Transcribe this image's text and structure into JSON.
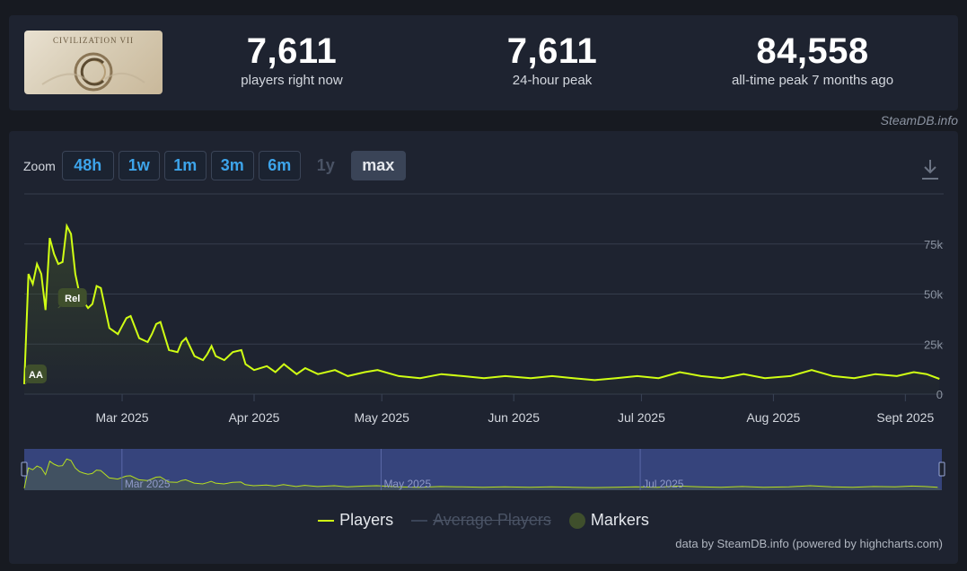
{
  "game": {
    "title": "CIVILIZATION VII"
  },
  "stats": [
    {
      "value": "7,611",
      "label": "players right now"
    },
    {
      "value": "7,611",
      "label": "24-hour peak"
    },
    {
      "value": "84,558",
      "label": "all-time peak 7 months ago"
    }
  ],
  "credit_top": "SteamDB.info",
  "zoom": {
    "label": "Zoom",
    "buttons": [
      {
        "label": "48h",
        "state": "enabled"
      },
      {
        "label": "1w",
        "state": "enabled"
      },
      {
        "label": "1m",
        "state": "enabled"
      },
      {
        "label": "3m",
        "state": "enabled"
      },
      {
        "label": "6m",
        "state": "enabled"
      },
      {
        "label": "1y",
        "state": "disabled"
      },
      {
        "label": "max",
        "state": "active"
      }
    ]
  },
  "legend": {
    "players": "Players",
    "average": "Average Players",
    "markers": "Markers"
  },
  "credit_bottom": "data by SteamDB.info (powered by highcharts.com)",
  "colors": {
    "players": "#d0ff14",
    "marker": "#3f4f2c",
    "navigator": "#3b4a8a"
  },
  "chart_data": {
    "type": "line",
    "x_axis": {
      "type": "datetime",
      "range": [
        "2025-02-06",
        "2025-09-10"
      ],
      "ticks": [
        "Mar 2025",
        "Apr 2025",
        "May 2025",
        "Jun 2025",
        "Jul 2025",
        "Aug 2025",
        "Sept 2025"
      ]
    },
    "y_axis": {
      "range": [
        0,
        100000
      ],
      "ticks": [
        "0",
        "25k",
        "50k",
        "75k"
      ],
      "grid": true
    },
    "series": [
      {
        "name": "Players",
        "x": [
          "2025-02-06",
          "2025-02-07",
          "2025-02-08",
          "2025-02-09",
          "2025-02-10",
          "2025-02-11",
          "2025-02-12",
          "2025-02-13",
          "2025-02-14",
          "2025-02-15",
          "2025-02-16",
          "2025-02-17",
          "2025-02-18",
          "2025-02-19",
          "2025-02-20",
          "2025-02-21",
          "2025-02-22",
          "2025-02-23",
          "2025-02-24",
          "2025-02-26",
          "2025-02-28",
          "2025-03-01",
          "2025-03-02",
          "2025-03-03",
          "2025-03-05",
          "2025-03-07",
          "2025-03-08",
          "2025-03-09",
          "2025-03-10",
          "2025-03-12",
          "2025-03-14",
          "2025-03-15",
          "2025-03-16",
          "2025-03-18",
          "2025-03-20",
          "2025-03-21",
          "2025-03-22",
          "2025-03-23",
          "2025-03-25",
          "2025-03-27",
          "2025-03-29",
          "2025-03-30",
          "2025-04-01",
          "2025-04-04",
          "2025-04-06",
          "2025-04-08",
          "2025-04-11",
          "2025-04-13",
          "2025-04-16",
          "2025-04-20",
          "2025-04-23",
          "2025-04-27",
          "2025-04-30",
          "2025-05-05",
          "2025-05-10",
          "2025-05-15",
          "2025-05-20",
          "2025-05-25",
          "2025-05-30",
          "2025-06-05",
          "2025-06-10",
          "2025-06-15",
          "2025-06-20",
          "2025-06-25",
          "2025-06-30",
          "2025-07-05",
          "2025-07-10",
          "2025-07-15",
          "2025-07-20",
          "2025-07-25",
          "2025-07-30",
          "2025-08-05",
          "2025-08-10",
          "2025-08-15",
          "2025-08-20",
          "2025-08-25",
          "2025-08-30",
          "2025-09-03",
          "2025-09-06",
          "2025-09-09"
        ],
        "values": [
          5000,
          60000,
          55000,
          65000,
          60000,
          42000,
          78000,
          70000,
          65000,
          66000,
          84000,
          80000,
          60000,
          50000,
          46000,
          43000,
          45000,
          54000,
          53000,
          33000,
          30000,
          34000,
          38000,
          39000,
          28000,
          26000,
          30000,
          35000,
          36000,
          22000,
          21000,
          26000,
          28000,
          19000,
          17000,
          20000,
          24000,
          19000,
          17000,
          21000,
          22000,
          15000,
          12000,
          14000,
          11000,
          15000,
          10000,
          13000,
          10000,
          12000,
          9000,
          11000,
          12000,
          9000,
          8000,
          10000,
          9000,
          8000,
          9000,
          8000,
          9000,
          8000,
          7000,
          8000,
          9000,
          8000,
          11000,
          9000,
          8000,
          10000,
          8000,
          9000,
          12000,
          9000,
          8000,
          10000,
          9000,
          11000,
          10000,
          7611
        ]
      }
    ],
    "markers": [
      {
        "label": "AA",
        "x": "2025-02-06"
      },
      {
        "label": "Rel",
        "x": "2025-02-11"
      }
    ],
    "navigator": {
      "ticks": [
        "Mar 2025",
        "May 2025",
        "Jul 2025"
      ]
    }
  }
}
